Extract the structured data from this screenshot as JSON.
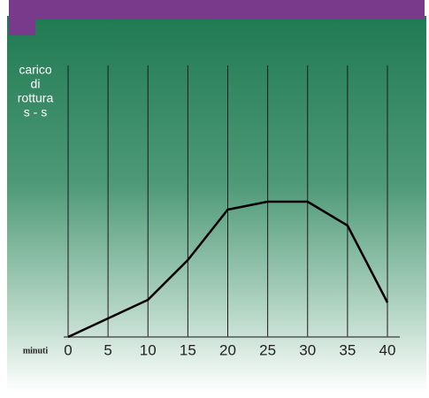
{
  "chart_data": {
    "type": "line",
    "y_label": [
      "carico",
      "di",
      "rottura",
      "s - s"
    ],
    "x_label": "minuti",
    "x": [
      0,
      5,
      10,
      15,
      20,
      25,
      30,
      35,
      40
    ],
    "values": [
      0,
      7,
      14,
      29,
      48,
      51,
      51,
      42,
      13
    ],
    "color": "#000000",
    "xlim": [
      0,
      40
    ],
    "xticks": [
      0,
      5,
      10,
      15,
      20,
      25,
      30,
      35,
      40
    ],
    "ylim": [
      0,
      100
    ],
    "grid": true
  }
}
